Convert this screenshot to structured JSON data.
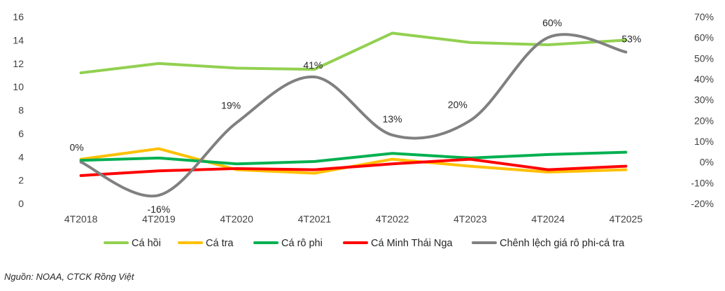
{
  "chart_data": {
    "type": "line",
    "categories": [
      "4T2018",
      "4T2019",
      "4T2020",
      "4T2021",
      "4T2022",
      "4T2023",
      "4T2024",
      "4T2025"
    ],
    "ylim": [
      0,
      16
    ],
    "yticks": [
      0,
      2,
      4,
      6,
      8,
      10,
      12,
      14,
      16
    ],
    "y2lim": [
      -20,
      70
    ],
    "y2ticks": [
      -20,
      -10,
      0,
      10,
      20,
      30,
      40,
      50,
      60,
      70
    ],
    "y2tick_labels": [
      "-20%",
      "-10%",
      "0%",
      "10%",
      "20%",
      "30%",
      "40%",
      "50%",
      "60%",
      "70%"
    ],
    "grid": false,
    "legend_position": "bottom",
    "series": [
      {
        "name": "Cá hồi",
        "color": "#92D050",
        "axis": "left",
        "values": [
          11.2,
          12.0,
          11.6,
          11.5,
          14.6,
          13.8,
          13.6,
          14.0
        ]
      },
      {
        "name": "Cá tra",
        "color": "#FFC000",
        "axis": "left",
        "values": [
          3.8,
          4.7,
          2.9,
          2.6,
          3.8,
          3.2,
          2.7,
          2.9
        ]
      },
      {
        "name": "Cá rô phi",
        "color": "#00B050",
        "axis": "left",
        "values": [
          3.7,
          3.9,
          3.4,
          3.6,
          4.3,
          3.9,
          4.2,
          4.4
        ]
      },
      {
        "name": "Cá Minh Thái Nga",
        "color": "#FF0000",
        "axis": "left",
        "values": [
          2.4,
          2.8,
          3.0,
          2.9,
          3.4,
          3.8,
          2.9,
          3.2
        ]
      },
      {
        "name": "Chênh lệch giá rô phi-cá tra",
        "color": "#808080",
        "axis": "right",
        "values": [
          0,
          -16,
          19,
          41,
          13,
          20,
          60,
          53
        ],
        "labels": [
          "0%",
          "-16%",
          "19%",
          "41%",
          "13%",
          "20%",
          "60%",
          "53%"
        ]
      }
    ]
  },
  "source_note": "Nguồn: NOAA, CTCK Rồng Việt"
}
